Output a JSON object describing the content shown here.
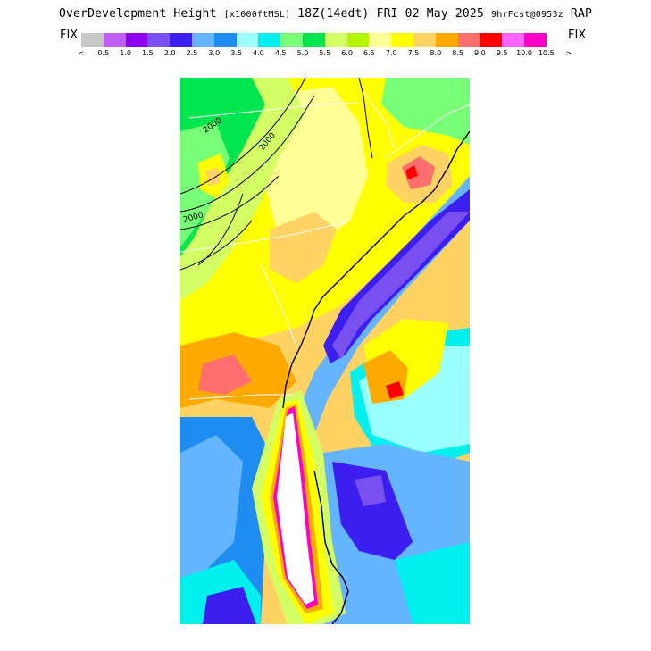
{
  "title": {
    "main": "OverDevelopment Height",
    "units": "[x1000ftMSL]",
    "time": "18Z(14edt) FRI 02 May 2025",
    "fcst": "9hrFcst@0953z",
    "model": "RAP"
  },
  "legend": {
    "left_label": "FIX",
    "right_label": "FIX",
    "colors": [
      "#c8c8c8",
      "#c060f0",
      "#9000f0",
      "#7850f0",
      "#3c1ef0",
      "#64b4ff",
      "#1e8cf0",
      "#9cffff",
      "#00f0f0",
      "#78ff78",
      "#00e650",
      "#d4ff64",
      "#b4f500",
      "#ffff96",
      "#ffff00",
      "#ffd264",
      "#ffaa00",
      "#ff6e6e",
      "#ff0000",
      "#ff64ff",
      "#ff00c8"
    ],
    "ticks": [
      "<",
      "0.5",
      "1.0",
      "1.5",
      "2.0",
      "2.5",
      "3.0",
      "3.5",
      "4.0",
      "4.5",
      "5.0",
      "5.5",
      "6.0",
      "6.5",
      "7.0",
      "7.5",
      "8.0",
      "8.5",
      "9.0",
      "9.5",
      "10.0",
      "10.5",
      ">"
    ]
  },
  "map": {
    "contour_labels": [
      "2000",
      "2000",
      "2000"
    ]
  }
}
